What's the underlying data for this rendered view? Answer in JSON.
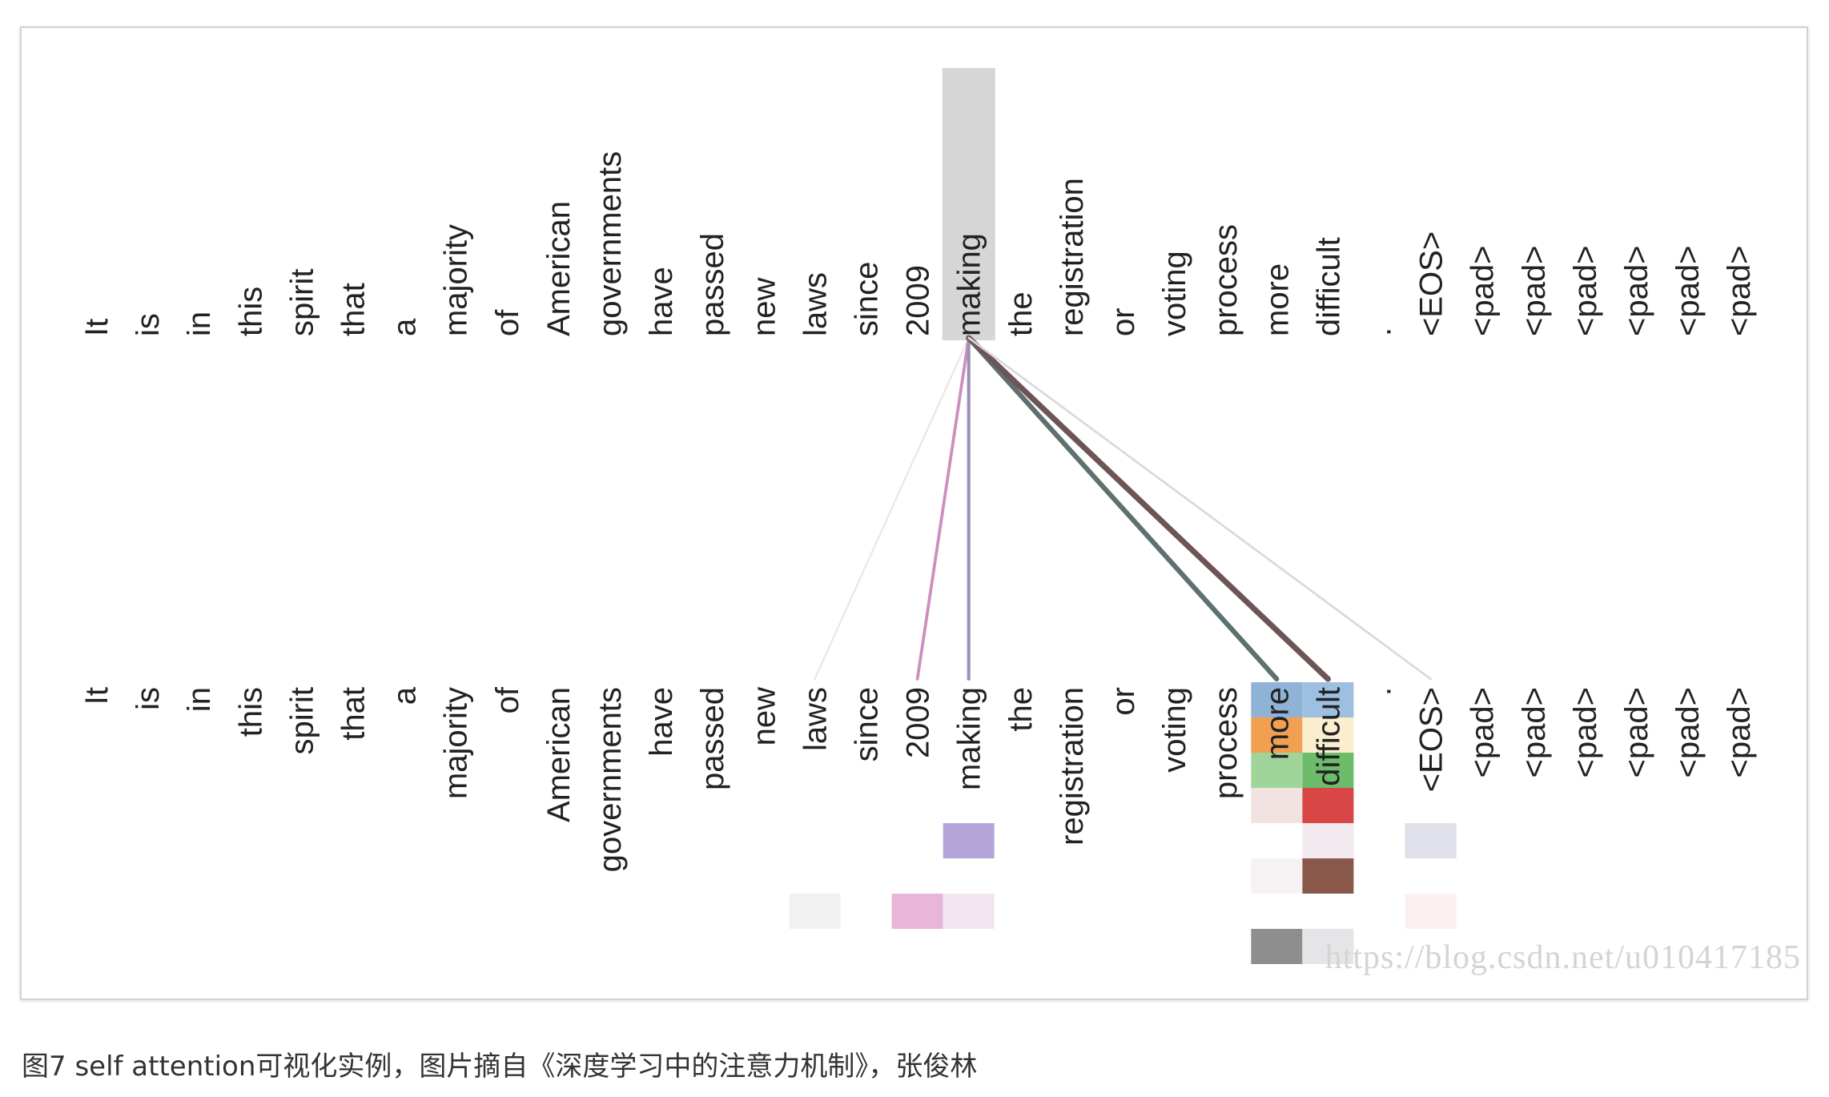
{
  "tokens_top": [
    "It",
    "is",
    "in",
    "this",
    "spirit",
    "that",
    "a",
    "majority",
    "of",
    "American",
    "governments",
    "have",
    "passed",
    "new",
    "laws",
    "since",
    "2009",
    "making",
    "the",
    "registration",
    "or",
    "voting",
    "process",
    "more",
    "difficult",
    ".",
    "<EOS>",
    "<pad>",
    "<pad>",
    "<pad>",
    "<pad>",
    "<pad>",
    "<pad>"
  ],
  "tokens_bottom": [
    "It",
    "is",
    "in",
    "this",
    "spirit",
    "that",
    "a",
    "majority",
    "of",
    "American",
    "governments",
    "have",
    "passed",
    "new",
    "laws",
    "since",
    "2009",
    "making",
    "the",
    "registration",
    "or",
    "voting",
    "process",
    "more",
    "difficult",
    ".",
    "<EOS>",
    "<pad>",
    "<pad>",
    "<pad>",
    "<pad>",
    "<pad>",
    "<pad>"
  ],
  "query_token": "making",
  "query_index": 17,
  "attention_links": [
    {
      "target_index": 14,
      "color": "#f2e3ea",
      "weight": 0.05
    },
    {
      "target_index": 16,
      "color": "#cc8fbf",
      "weight": 0.3
    },
    {
      "target_index": 17,
      "color": "#9c90b6",
      "weight": 0.35
    },
    {
      "target_index": 23,
      "color": "#5f7070",
      "weight": 0.7
    },
    {
      "target_index": 24,
      "color": "#6e5555",
      "weight": 0.85
    },
    {
      "target_index": 26,
      "color": "#d8d8e0",
      "weight": 0.12
    }
  ],
  "head_cells": [
    {
      "index": 23,
      "head": 0,
      "color": "#8fb3d6"
    },
    {
      "index": 24,
      "head": 0,
      "color": "#9ec0e0"
    },
    {
      "index": 23,
      "head": 1,
      "color": "#f0a050"
    },
    {
      "index": 24,
      "head": 1,
      "color": "#fbeecf"
    },
    {
      "index": 23,
      "head": 2,
      "color": "#9fd59a"
    },
    {
      "index": 24,
      "head": 2,
      "color": "#6cbc6c"
    },
    {
      "index": 23,
      "head": 3,
      "color": "#f3e2e2"
    },
    {
      "index": 24,
      "head": 3,
      "color": "#d84646"
    },
    {
      "index": 17,
      "head": 4,
      "color": "#b6a5d9"
    },
    {
      "index": 24,
      "head": 4,
      "color": "#f3eaf0"
    },
    {
      "index": 26,
      "head": 4,
      "color": "#e0e0ea"
    },
    {
      "index": 23,
      "head": 5,
      "color": "#f6f2f4"
    },
    {
      "index": 24,
      "head": 5,
      "color": "#8a574b"
    },
    {
      "index": 14,
      "head": 6,
      "color": "#f1f1f1"
    },
    {
      "index": 16,
      "head": 6,
      "color": "#e8b6d8"
    },
    {
      "index": 17,
      "head": 6,
      "color": "#f3e6f1"
    },
    {
      "index": 26,
      "head": 6,
      "color": "#fbf1f3"
    },
    {
      "index": 23,
      "head": 7,
      "color": "#8e8e8e"
    },
    {
      "index": 24,
      "head": 7,
      "color": "#e5e5e8"
    }
  ],
  "colors": {
    "query_highlight": "#d6d6d6",
    "frame_border": "#d2d2d2",
    "text": "#222222",
    "watermark": "#d4d4d4"
  },
  "watermark": "https://blog.csdn.net/u010417185",
  "caption": "图7 self attention可视化实例，图片摘自《深度学习中的注意力机制》，张俊林"
}
